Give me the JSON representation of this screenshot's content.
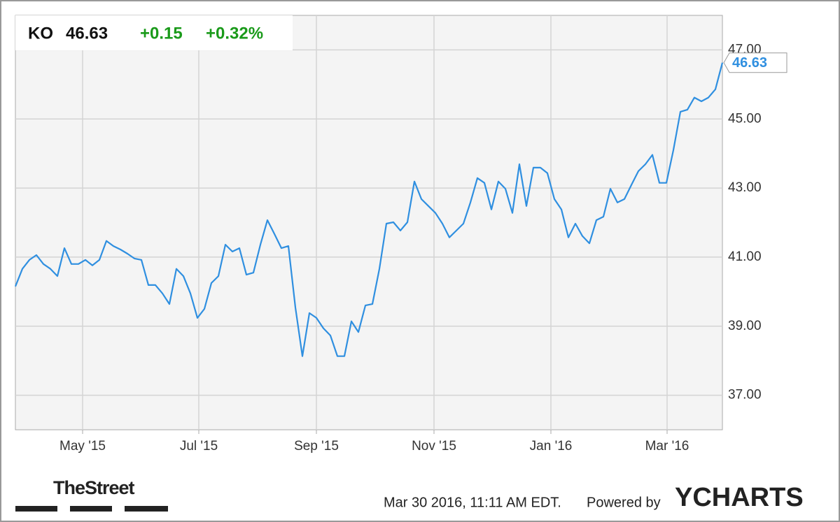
{
  "quote": {
    "symbol": "KO",
    "price": "46.63",
    "change": "+0.15",
    "change_pct": "+0.32%"
  },
  "chart_data": {
    "type": "line",
    "color": "#2f8fe0",
    "grid": true,
    "values": [
      40.15,
      40.66,
      40.92,
      41.06,
      40.8,
      40.66,
      40.45,
      41.26,
      40.8,
      40.8,
      40.92,
      40.76,
      40.92,
      41.47,
      41.32,
      41.22,
      41.1,
      40.96,
      40.92,
      40.19,
      40.19,
      39.95,
      39.64,
      40.66,
      40.45,
      39.95,
      39.24,
      39.5,
      40.25,
      40.45,
      41.36,
      41.16,
      41.26,
      40.49,
      40.55,
      41.36,
      42.07,
      41.67,
      41.26,
      41.32,
      39.54,
      38.13,
      39.38,
      39.24,
      38.94,
      38.73,
      38.13,
      38.13,
      39.14,
      38.83,
      39.6,
      39.64,
      40.66,
      41.97,
      42.01,
      41.77,
      42.01,
      43.19,
      42.68,
      42.48,
      42.28,
      41.97,
      41.57,
      41.77,
      41.97,
      42.58,
      43.29,
      43.15,
      42.38,
      43.19,
      42.98,
      42.28,
      43.69,
      42.48,
      43.59,
      43.59,
      43.43,
      42.68,
      42.38,
      41.57,
      41.97,
      41.61,
      41.4,
      42.07,
      42.17,
      42.98,
      42.58,
      42.68,
      43.09,
      43.49,
      43.69,
      43.96,
      43.15,
      43.15,
      44.1,
      45.21,
      45.27,
      45.62,
      45.51,
      45.62,
      45.86,
      46.63
    ],
    "xlim": [
      0,
      101
    ],
    "xticks": [
      {
        "value": 9.6,
        "label": "May '15"
      },
      {
        "value": 26.2,
        "label": "Jul '15"
      },
      {
        "value": 43,
        "label": "Sep '15"
      },
      {
        "value": 59.8,
        "label": "Nov '15"
      },
      {
        "value": 76.5,
        "label": "Jan '16"
      },
      {
        "value": 93.1,
        "label": "Mar '16"
      }
    ],
    "ylim": [
      36,
      48
    ],
    "yticks": [
      {
        "value": 37,
        "label": "37.00"
      },
      {
        "value": 39,
        "label": "39.00"
      },
      {
        "value": 41,
        "label": "41.00"
      },
      {
        "value": 43,
        "label": "43.00"
      },
      {
        "value": 45,
        "label": "45.00"
      },
      {
        "value": 47,
        "label": "47.00"
      }
    ]
  },
  "footer": {
    "brand": "TheStreet",
    "timestamp": "Mar 30 2016, 11:11 AM EDT.",
    "powered_by": "Powered by",
    "logo": "YCHARTS"
  }
}
